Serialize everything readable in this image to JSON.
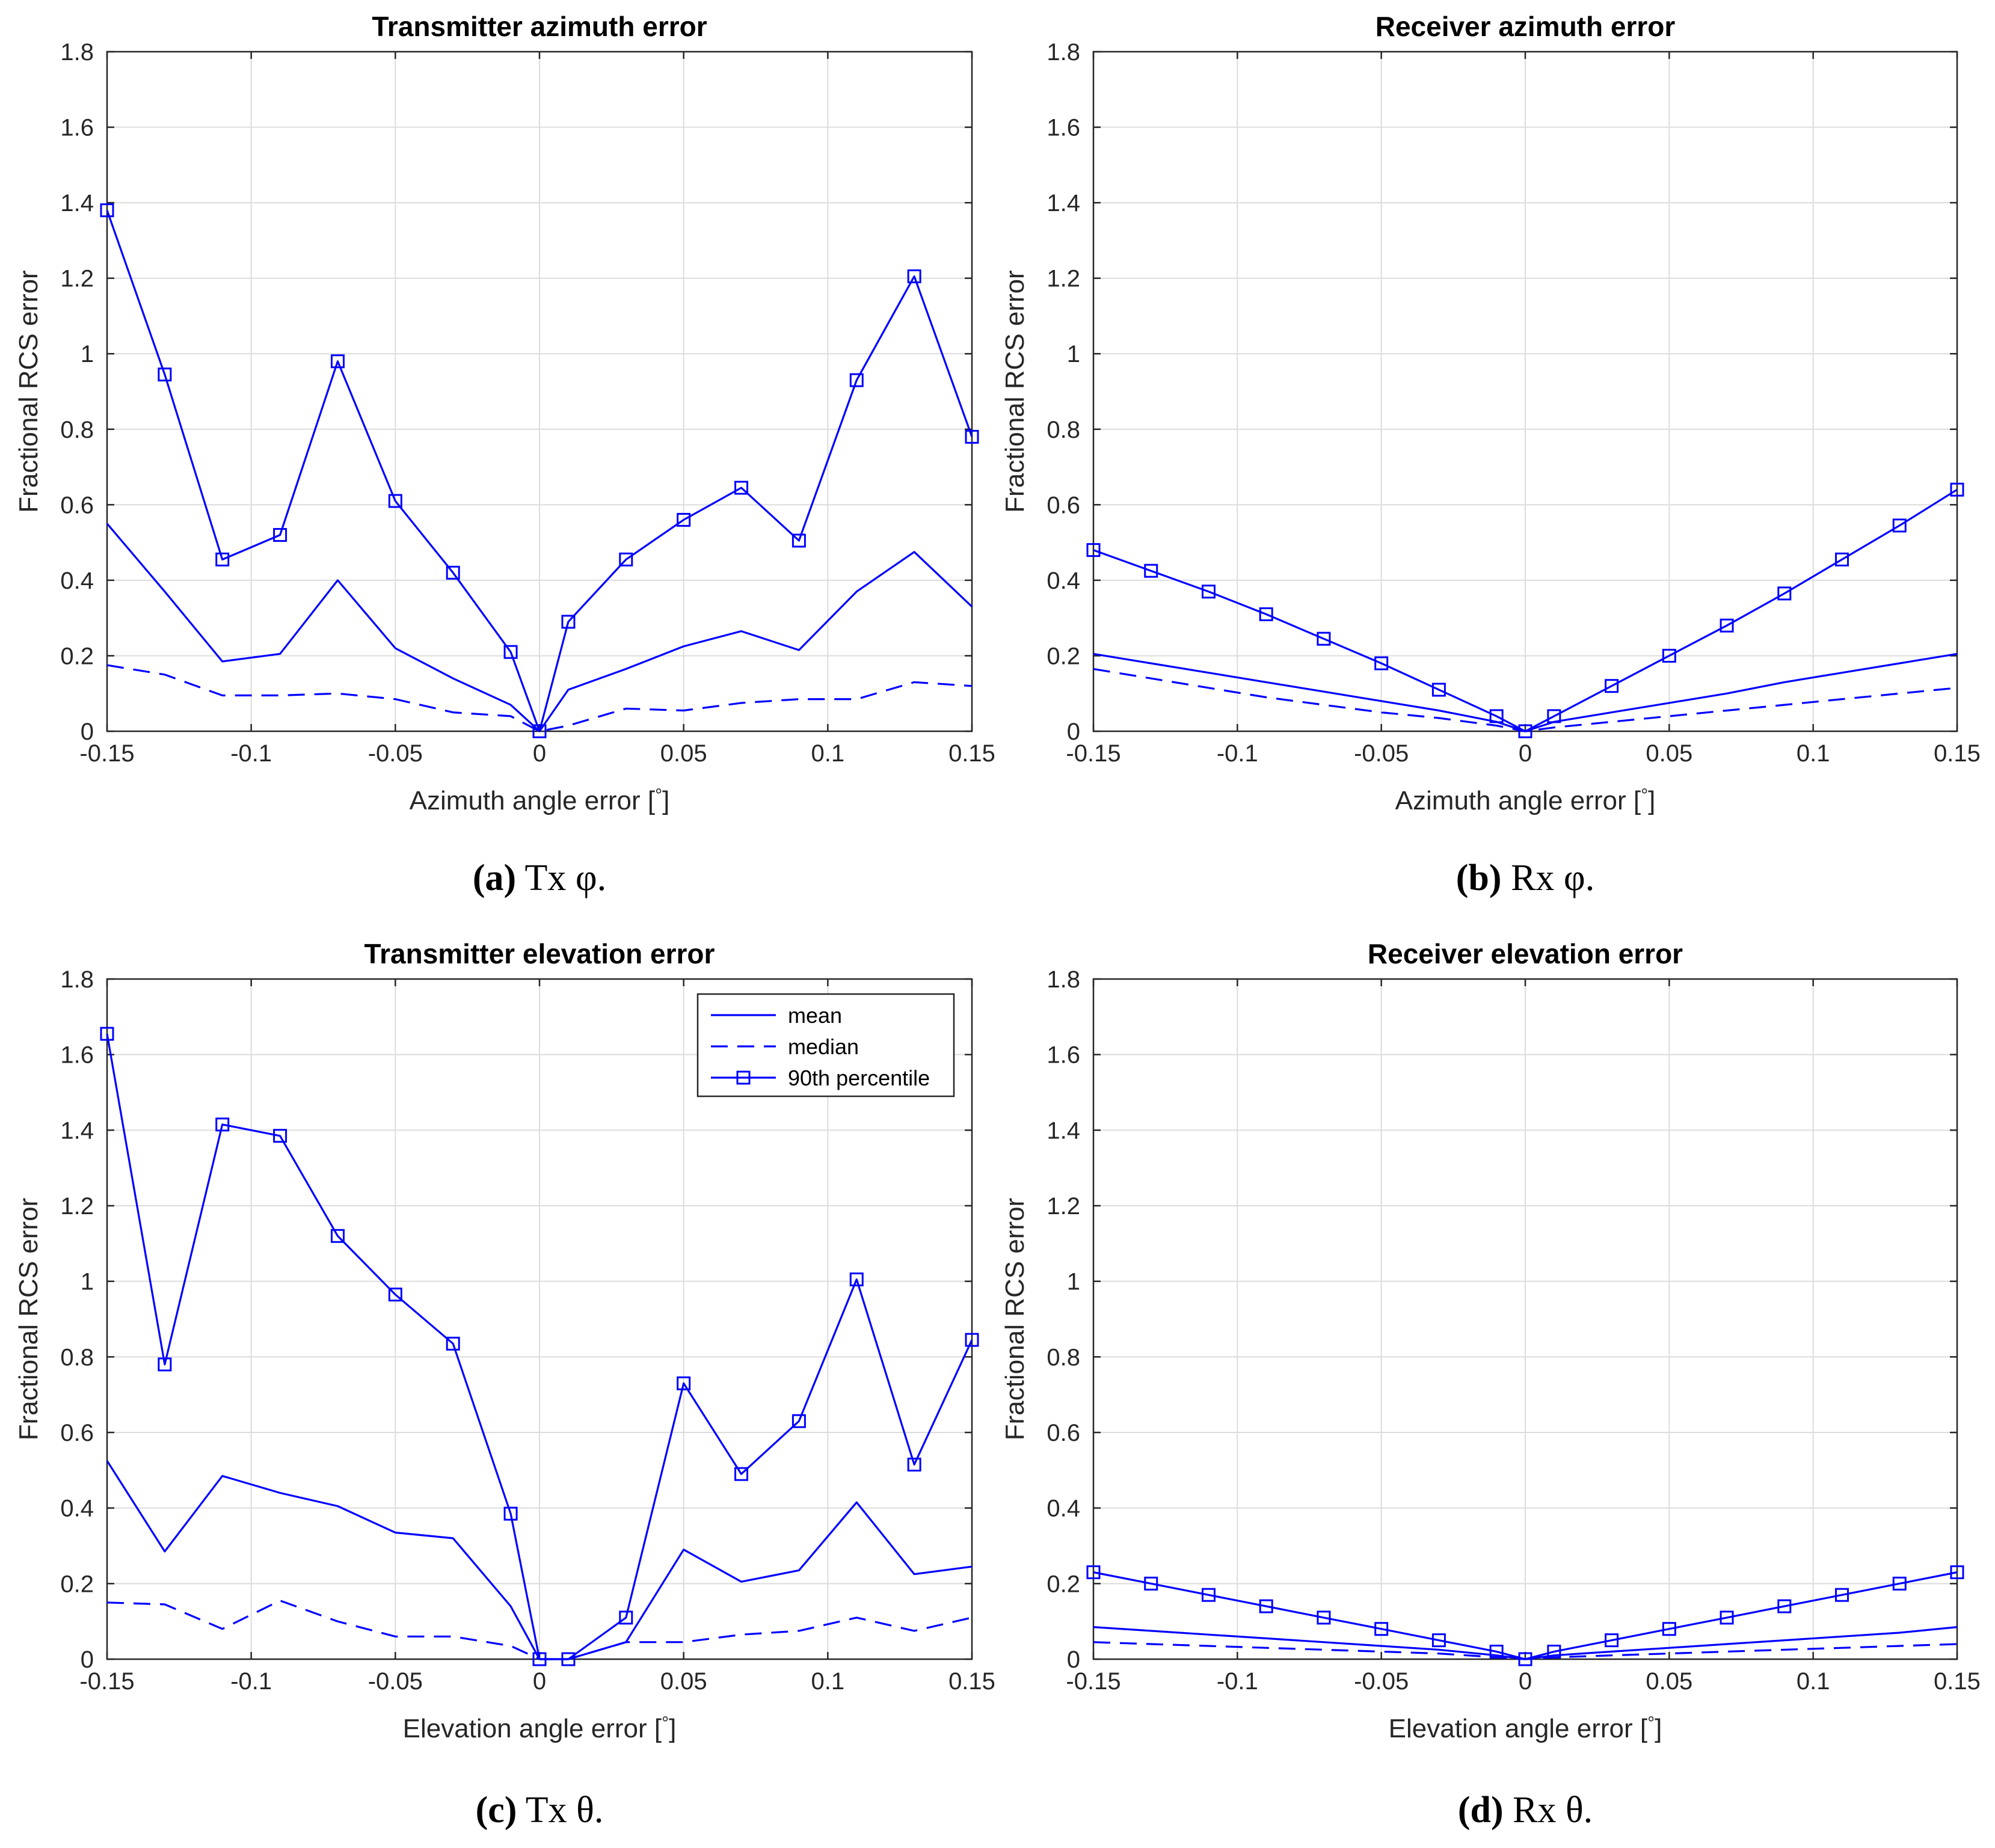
{
  "colors": {
    "series": "#0000ff"
  },
  "chart_data": [
    {
      "type": "line",
      "title": "Transmitter azimuth error",
      "xlabel": "Azimuth angle error [°]",
      "ylabel": "Fractional RCS error",
      "caption_letter": "(a)",
      "caption_text": " Tx φ.",
      "xlim": [
        -0.15,
        0.15
      ],
      "ylim": [
        0,
        1.8
      ],
      "xticks": [
        "-0.15",
        "-0.1",
        "-0.05",
        "0",
        "0.05",
        "0.1",
        "0.15"
      ],
      "yticks": [
        "0",
        "0.2",
        "0.4",
        "0.6",
        "0.8",
        "1",
        "1.2",
        "1.4",
        "1.6",
        "1.8"
      ],
      "x": [
        -0.15,
        -0.13,
        -0.11,
        -0.09,
        -0.07,
        -0.05,
        -0.03,
        -0.01,
        0,
        0.01,
        0.03,
        0.05,
        0.07,
        0.09,
        0.11,
        0.13,
        0.15
      ],
      "series": [
        {
          "name": "mean",
          "style": "solid",
          "values": [
            0.55,
            0.37,
            0.185,
            0.205,
            0.4,
            0.22,
            0.14,
            0.07,
            0.0,
            0.11,
            0.165,
            0.225,
            0.265,
            0.215,
            0.37,
            0.475,
            0.33
          ]
        },
        {
          "name": "median",
          "style": "dashed",
          "values": [
            0.175,
            0.15,
            0.095,
            0.095,
            0.1,
            0.085,
            0.05,
            0.04,
            0.0,
            0.015,
            0.06,
            0.055,
            0.075,
            0.085,
            0.085,
            0.13,
            0.12
          ]
        },
        {
          "name": "90th percentile",
          "style": "solid-square",
          "values": [
            1.38,
            0.945,
            0.455,
            0.52,
            0.98,
            0.61,
            0.42,
            0.21,
            0.0,
            0.29,
            0.455,
            0.56,
            0.645,
            0.505,
            0.93,
            1.205,
            0.78
          ]
        }
      ]
    },
    {
      "type": "line",
      "title": "Receiver azimuth error",
      "xlabel": "Azimuth angle error [°]",
      "ylabel": "Fractional RCS error",
      "caption_letter": "(b)",
      "caption_text": " Rx φ.",
      "xlim": [
        -0.15,
        0.15
      ],
      "ylim": [
        0,
        1.8
      ],
      "xticks": [
        "-0.15",
        "-0.1",
        "-0.05",
        "0",
        "0.05",
        "0.1",
        "0.15"
      ],
      "yticks": [
        "0",
        "0.2",
        "0.4",
        "0.6",
        "0.8",
        "1",
        "1.2",
        "1.4",
        "1.6",
        "1.8"
      ],
      "x": [
        -0.15,
        -0.13,
        -0.11,
        -0.09,
        -0.07,
        -0.05,
        -0.03,
        -0.01,
        0,
        0.01,
        0.03,
        0.05,
        0.07,
        0.09,
        0.11,
        0.13,
        0.15
      ],
      "series": [
        {
          "name": "mean",
          "style": "solid",
          "values": [
            0.205,
            0.18,
            0.155,
            0.13,
            0.105,
            0.08,
            0.055,
            0.025,
            0.0,
            0.025,
            0.05,
            0.075,
            0.1,
            0.13,
            0.155,
            0.18,
            0.205
          ]
        },
        {
          "name": "median",
          "style": "dashed",
          "values": [
            0.165,
            0.14,
            0.115,
            0.09,
            0.07,
            0.05,
            0.035,
            0.015,
            0.0,
            0.01,
            0.025,
            0.04,
            0.055,
            0.07,
            0.085,
            0.1,
            0.115
          ]
        },
        {
          "name": "90th percentile",
          "style": "solid-square",
          "values": [
            0.48,
            0.425,
            0.37,
            0.31,
            0.245,
            0.18,
            0.11,
            0.04,
            0.0,
            0.04,
            0.12,
            0.2,
            0.28,
            0.365,
            0.455,
            0.545,
            0.64
          ]
        }
      ]
    },
    {
      "type": "line",
      "title": "Transmitter elevation error",
      "xlabel": "Elevation angle error [°]",
      "ylabel": "Fractional RCS error",
      "caption_letter": "(c)",
      "caption_text": " Tx θ.",
      "legend": "top-right",
      "xlim": [
        -0.15,
        0.15
      ],
      "ylim": [
        0,
        1.8
      ],
      "xticks": [
        "-0.15",
        "-0.1",
        "-0.05",
        "0",
        "0.05",
        "0.1",
        "0.15"
      ],
      "yticks": [
        "0",
        "0.2",
        "0.4",
        "0.6",
        "0.8",
        "1",
        "1.2",
        "1.4",
        "1.6",
        "1.8"
      ],
      "x": [
        -0.15,
        -0.13,
        -0.11,
        -0.09,
        -0.07,
        -0.05,
        -0.03,
        -0.01,
        0,
        0.01,
        0.03,
        0.05,
        0.07,
        0.09,
        0.11,
        0.13,
        0.15
      ],
      "series": [
        {
          "name": "mean",
          "style": "solid",
          "values": [
            0.525,
            0.285,
            0.485,
            0.44,
            0.405,
            0.335,
            0.32,
            0.14,
            0.0,
            0.0,
            0.045,
            0.29,
            0.205,
            0.235,
            0.415,
            0.225,
            0.245
          ]
        },
        {
          "name": "median",
          "style": "dashed",
          "values": [
            0.15,
            0.145,
            0.08,
            0.155,
            0.1,
            0.06,
            0.06,
            0.035,
            0.0,
            0.0,
            0.045,
            0.045,
            0.065,
            0.075,
            0.11,
            0.075,
            0.11
          ]
        },
        {
          "name": "90th percentile",
          "style": "solid-square",
          "values": [
            1.655,
            0.78,
            1.415,
            1.385,
            1.12,
            0.965,
            0.835,
            0.385,
            0.0,
            0.0,
            0.11,
            0.73,
            0.49,
            0.63,
            1.005,
            0.515,
            0.845
          ]
        }
      ]
    },
    {
      "type": "line",
      "title": "Receiver elevation error",
      "xlabel": "Elevation angle error [°]",
      "ylabel": "Fractional RCS error",
      "caption_letter": "(d)",
      "caption_text": " Rx θ.",
      "xlim": [
        -0.15,
        0.15
      ],
      "ylim": [
        0,
        1.8
      ],
      "xticks": [
        "-0.15",
        "-0.1",
        "-0.05",
        "0",
        "0.05",
        "0.1",
        "0.15"
      ],
      "yticks": [
        "0",
        "0.2",
        "0.4",
        "0.6",
        "0.8",
        "1",
        "1.2",
        "1.4",
        "1.6",
        "1.8"
      ],
      "x": [
        -0.15,
        -0.13,
        -0.11,
        -0.09,
        -0.07,
        -0.05,
        -0.03,
        -0.01,
        0,
        0.01,
        0.03,
        0.05,
        0.07,
        0.09,
        0.11,
        0.13,
        0.15
      ],
      "series": [
        {
          "name": "mean",
          "style": "solid",
          "values": [
            0.085,
            0.075,
            0.065,
            0.055,
            0.045,
            0.035,
            0.025,
            0.01,
            0.0,
            0.01,
            0.02,
            0.03,
            0.04,
            0.05,
            0.06,
            0.07,
            0.085
          ]
        },
        {
          "name": "median",
          "style": "dashed",
          "values": [
            0.045,
            0.04,
            0.035,
            0.03,
            0.025,
            0.02,
            0.015,
            0.005,
            0.0,
            0.005,
            0.01,
            0.015,
            0.02,
            0.025,
            0.03,
            0.035,
            0.04
          ]
        },
        {
          "name": "90th percentile",
          "style": "solid-square",
          "values": [
            0.23,
            0.2,
            0.17,
            0.14,
            0.11,
            0.08,
            0.05,
            0.02,
            0.0,
            0.02,
            0.05,
            0.08,
            0.11,
            0.14,
            0.17,
            0.2,
            0.23
          ]
        }
      ]
    }
  ]
}
